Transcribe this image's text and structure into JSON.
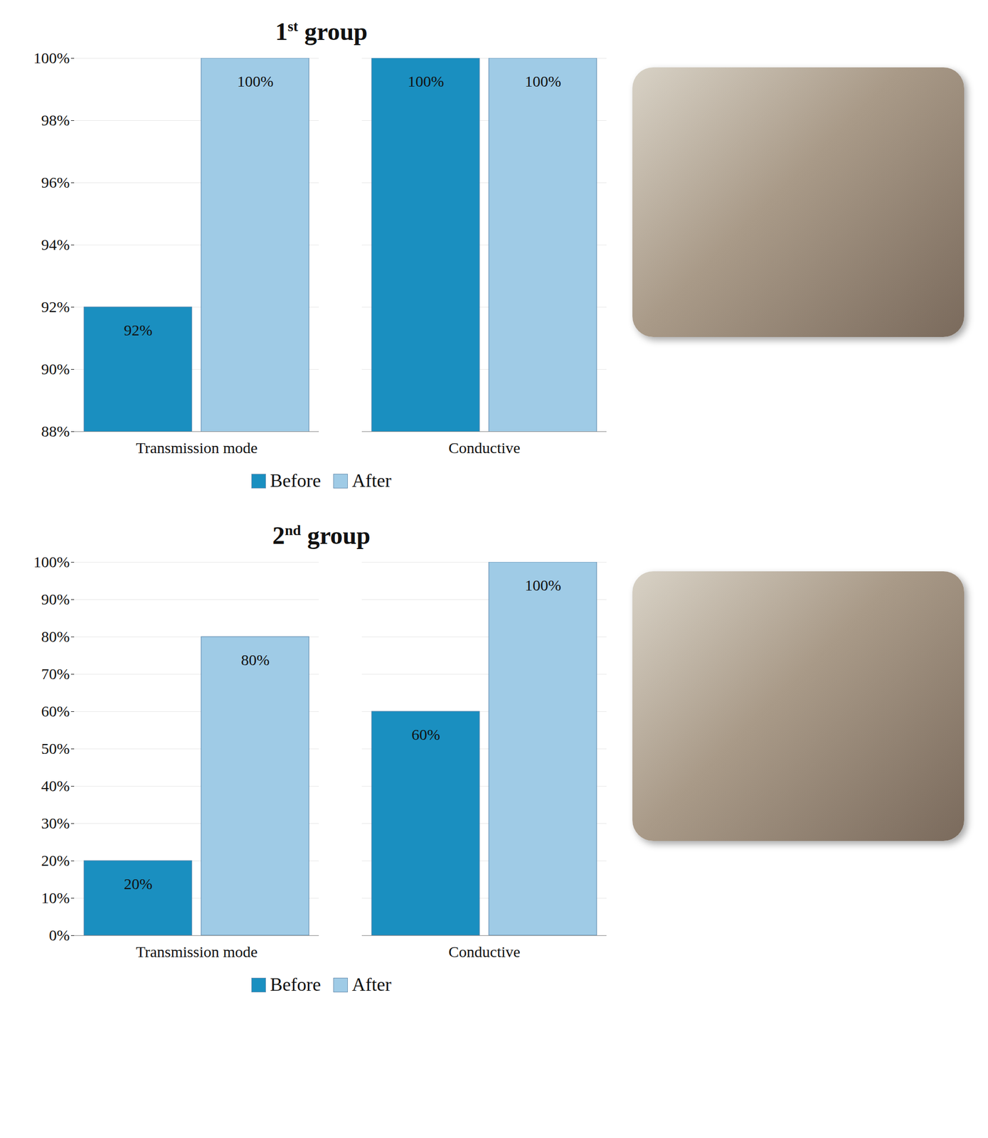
{
  "chart_data": [
    {
      "type": "bar",
      "title": "1st group",
      "categories": [
        "Transmission mode",
        "Conductive"
      ],
      "series": [
        {
          "name": "Before",
          "color": "#1a8fc0",
          "values": [
            92,
            100
          ],
          "value_labels": [
            "92%",
            "100%"
          ]
        },
        {
          "name": "After",
          "color": "#9fcbe6",
          "values": [
            100,
            100
          ],
          "value_labels": [
            "100%",
            "100%"
          ]
        }
      ],
      "ylim": [
        88,
        100
      ],
      "yticks": [
        {
          "value": 88,
          "label": "88%"
        },
        {
          "value": 90,
          "label": "90%"
        },
        {
          "value": 92,
          "label": "92%"
        },
        {
          "value": 94,
          "label": "94%"
        },
        {
          "value": 96,
          "label": "96%"
        },
        {
          "value": 98,
          "label": "98%"
        },
        {
          "value": 100,
          "label": "100%"
        }
      ],
      "grid": true,
      "data_labels": true,
      "legend": "bottom"
    },
    {
      "type": "bar",
      "title": "2nd group",
      "categories": [
        "Transmission mode",
        "Conductive"
      ],
      "series": [
        {
          "name": "Before",
          "color": "#1a8fc0",
          "values": [
            20,
            60
          ],
          "value_labels": [
            "20%",
            "60%"
          ]
        },
        {
          "name": "After",
          "color": "#9fcbe6",
          "values": [
            80,
            100
          ],
          "value_labels": [
            "80%",
            "100%"
          ]
        }
      ],
      "ylim": [
        0,
        100
      ],
      "yticks": [
        {
          "value": 0,
          "label": "0%"
        },
        {
          "value": 10,
          "label": "10%"
        },
        {
          "value": 20,
          "label": "20%"
        },
        {
          "value": 30,
          "label": "30%"
        },
        {
          "value": 40,
          "label": "40%"
        },
        {
          "value": 50,
          "label": "50%"
        },
        {
          "value": 60,
          "label": "60%"
        },
        {
          "value": 70,
          "label": "70%"
        },
        {
          "value": 80,
          "label": "80%"
        },
        {
          "value": 90,
          "label": "90%"
        },
        {
          "value": 100,
          "label": "100%"
        }
      ],
      "grid": true,
      "data_labels": true,
      "legend": "bottom"
    }
  ]
}
